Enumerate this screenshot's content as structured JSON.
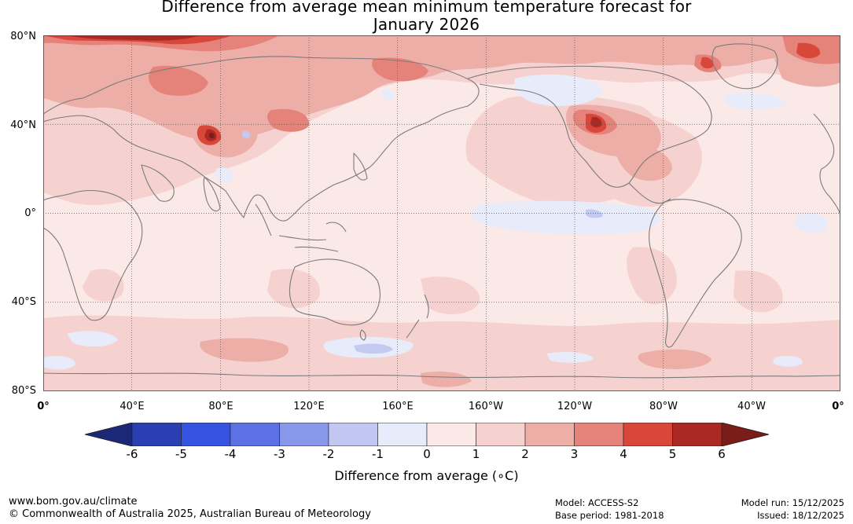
{
  "title": {
    "line1": "Difference from average mean minimum temperature forecast for",
    "line2": "January 2026"
  },
  "map": {
    "lat_labels": [
      "80°N",
      "40°N",
      "0°",
      "40°S",
      "80°S"
    ],
    "lon_labels": [
      "0°",
      "40°E",
      "80°E",
      "120°E",
      "160°E",
      "160°W",
      "120°W",
      "80°W",
      "40°W",
      "0°"
    ],
    "colors": {
      "background": "#fbe9e7",
      "anomaly_0_1": "#fbe9e7",
      "anomaly_1_2": "#f5d2cf",
      "anomaly_2_3": "#edaea8",
      "anomaly_3_4": "#e5837a",
      "anomaly_4_5": "#d9473b",
      "anomaly_5_6": "#ab2923",
      "anomaly_gt_6": "#7a1c17",
      "anomaly_m1_0": "#e8ebf9",
      "anomaly_m2_m1": "#c3c9f0",
      "coastline": "#7a7a7a"
    }
  },
  "colorbar": {
    "ticks": [
      "-6",
      "-5",
      "-4",
      "-3",
      "-2",
      "-1",
      "0",
      "1",
      "2",
      "3",
      "4",
      "5",
      "6"
    ],
    "colors": [
      "#1b2878",
      "#2a40b2",
      "#3552e0",
      "#5c72e4",
      "#8897ea",
      "#c1c7f1",
      "#e8ebf9",
      "#fbe9e7",
      "#f5d2cf",
      "#edaea8",
      "#e5837a",
      "#d9473b",
      "#ab2923",
      "#7a1c17"
    ],
    "label": "Difference from average (∘C)"
  },
  "footer": {
    "website": "www.bom.gov.au/climate",
    "copyright": "© Commonwealth of Australia 2025, Australian Bureau of Meteorology",
    "model": "Model: ACCESS-S2",
    "base_period": "Base period: 1981-2018",
    "model_run": "Model run: 15/12/2025",
    "issued": "Issued: 18/12/2025"
  }
}
